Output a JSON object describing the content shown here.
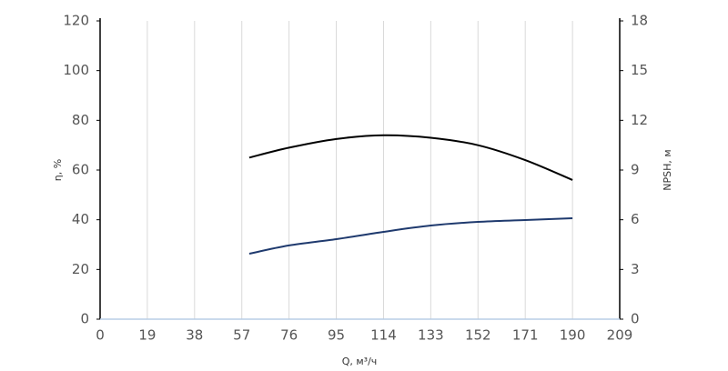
{
  "chart_data": {
    "type": "line",
    "x_label": "Q, м³/ч",
    "y_label": "η, %",
    "y2_label": "NPSH, м",
    "x": [
      60,
      76,
      95,
      114,
      133,
      152,
      171,
      190
    ],
    "series": [
      {
        "color": "#000000",
        "values": [
          65,
          69,
          72.5,
          74,
          73,
          70,
          64,
          56
        ]
      },
      {
        "color": "#1f3a6e",
        "axis": "y2",
        "values": [
          3.95,
          4.45,
          4.83,
          5.27,
          5.65,
          5.87,
          5.98,
          6.09
        ]
      }
    ],
    "xlim": [
      0,
      209
    ],
    "xticks": [
      0,
      19,
      38,
      57,
      76,
      95,
      114,
      133,
      152,
      171,
      190,
      209
    ],
    "ylim": [
      0,
      120
    ],
    "yticks": [
      0,
      20,
      40,
      60,
      80,
      100,
      120
    ],
    "y2lim": [
      0,
      18
    ],
    "y2ticks": [
      0,
      3,
      6,
      9,
      12,
      15,
      18
    ],
    "grid": "x"
  }
}
